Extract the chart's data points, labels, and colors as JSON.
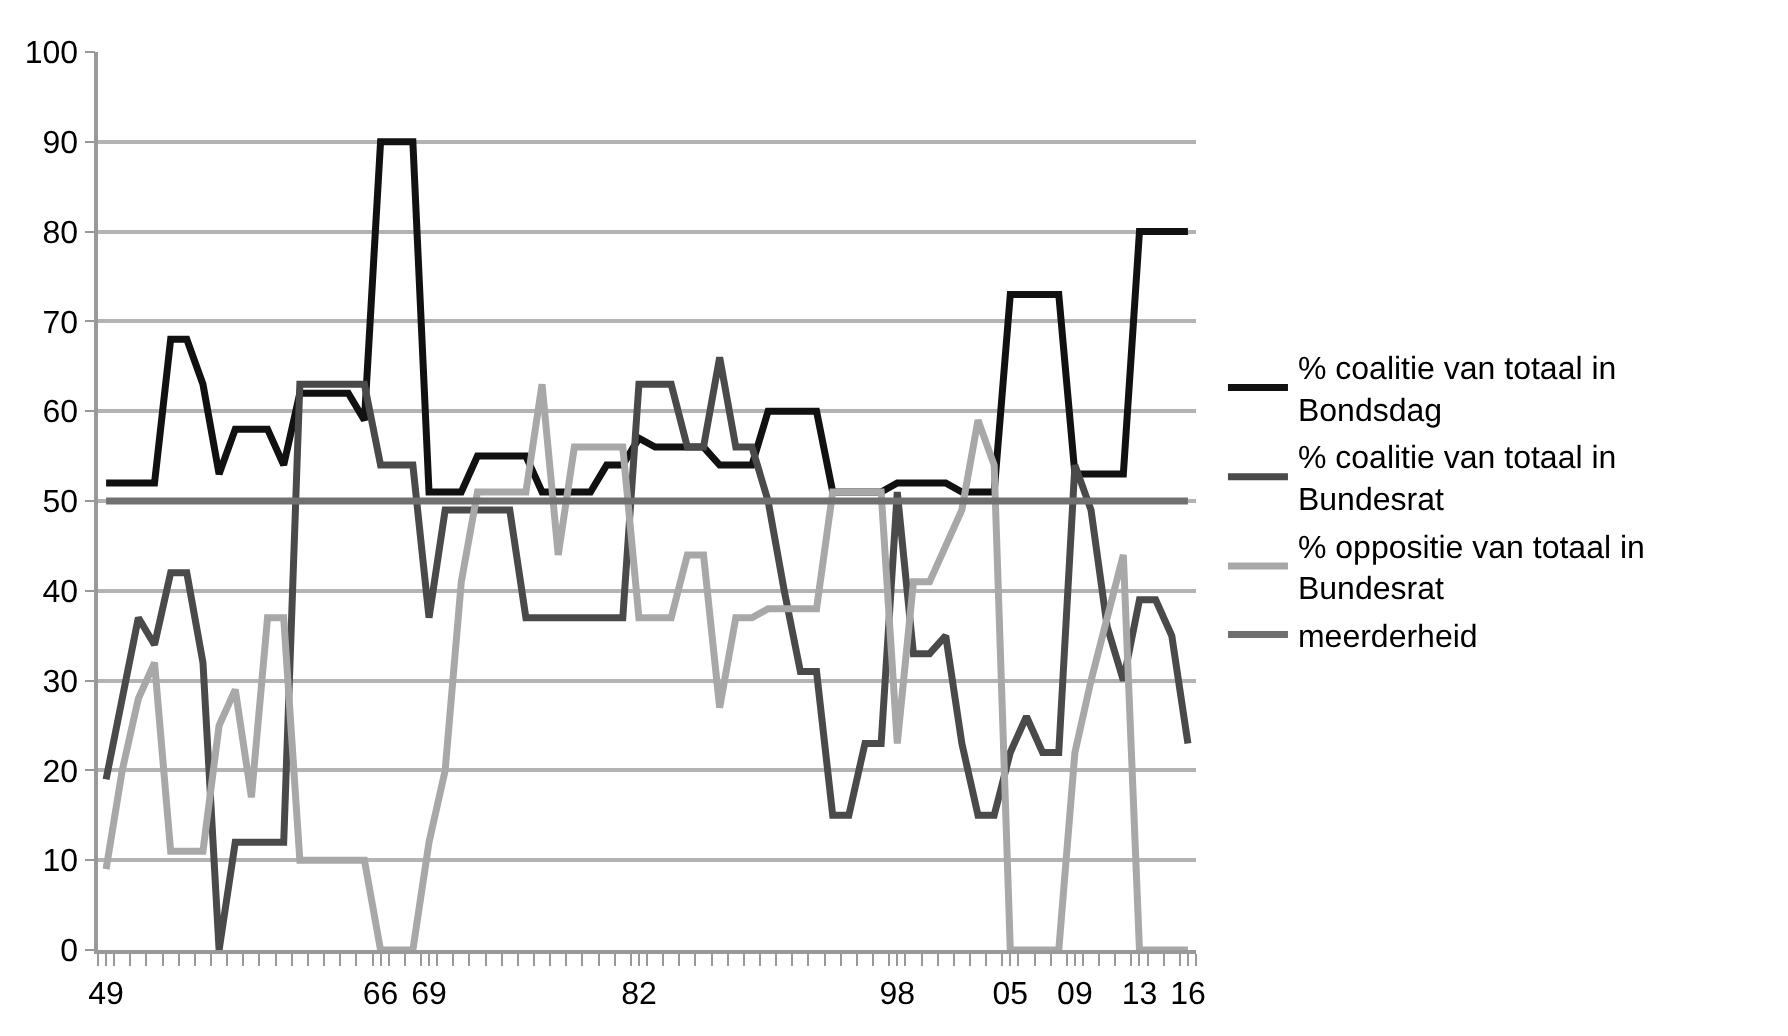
{
  "chart_data": {
    "type": "line",
    "categories": [
      "49",
      null,
      null,
      null,
      null,
      null,
      null,
      null,
      null,
      null,
      null,
      null,
      null,
      null,
      null,
      null,
      null,
      "66",
      null,
      null,
      "69",
      null,
      null,
      null,
      null,
      null,
      null,
      null,
      null,
      null,
      null,
      null,
      null,
      "82",
      null,
      null,
      null,
      null,
      null,
      null,
      null,
      null,
      null,
      null,
      null,
      null,
      null,
      null,
      null,
      "98",
      null,
      null,
      null,
      null,
      null,
      null,
      "05",
      null,
      null,
      null,
      "09",
      null,
      null,
      null,
      "13",
      null,
      null,
      "16"
    ],
    "series": [
      {
        "name": "% coalitie van totaal in Bondsdag",
        "color": "#111111",
        "values": [
          52,
          52,
          52,
          52,
          68,
          68,
          63,
          53,
          58,
          58,
          58,
          54,
          62,
          62,
          62,
          62,
          59,
          90,
          90,
          90,
          51,
          51,
          51,
          55,
          55,
          55,
          55,
          51,
          51,
          51,
          51,
          54,
          54,
          57,
          56,
          56,
          56,
          56,
          54,
          54,
          54,
          60,
          60,
          60,
          60,
          51,
          51,
          51,
          51,
          52,
          52,
          52,
          52,
          51,
          51,
          51,
          73,
          73,
          73,
          73,
          53,
          53,
          53,
          53,
          80,
          80,
          80,
          80
        ]
      },
      {
        "name": "% coalitie van totaal in Bundesrat",
        "color": "#4a4a4a",
        "values": [
          19,
          28,
          37,
          34,
          42,
          42,
          32,
          0,
          12,
          12,
          12,
          12,
          63,
          63,
          63,
          63,
          63,
          54,
          54,
          54,
          37,
          49,
          49,
          49,
          49,
          49,
          37,
          37,
          37,
          37,
          37,
          37,
          37,
          63,
          63,
          63,
          56,
          56,
          66,
          56,
          56,
          50,
          40,
          31,
          31,
          15,
          15,
          23,
          23,
          51,
          33,
          33,
          35,
          23,
          15,
          15,
          22,
          26,
          22,
          22,
          54,
          49,
          36,
          30,
          39,
          39,
          35,
          23
        ]
      },
      {
        "name": "% oppositie van totaal in Bundesrat",
        "color": "#a8a8a8",
        "values": [
          9,
          20,
          28,
          32,
          11,
          11,
          11,
          25,
          29,
          17,
          37,
          37,
          10,
          10,
          10,
          10,
          10,
          0,
          0,
          0,
          12,
          20,
          41,
          51,
          51,
          51,
          51,
          63,
          44,
          56,
          56,
          56,
          56,
          37,
          37,
          37,
          44,
          44,
          27,
          37,
          37,
          38,
          38,
          38,
          38,
          51,
          51,
          51,
          51,
          23,
          41,
          41,
          45,
          49,
          59,
          54,
          0,
          0,
          0,
          0,
          22,
          30,
          37,
          44,
          0,
          0,
          0,
          0
        ]
      },
      {
        "name": "meerderheid",
        "color": "#707070",
        "values": [
          50,
          50,
          50,
          50,
          50,
          50,
          50,
          50,
          50,
          50,
          50,
          50,
          50,
          50,
          50,
          50,
          50,
          50,
          50,
          50,
          50,
          50,
          50,
          50,
          50,
          50,
          50,
          50,
          50,
          50,
          50,
          50,
          50,
          50,
          50,
          50,
          50,
          50,
          50,
          50,
          50,
          50,
          50,
          50,
          50,
          50,
          50,
          50,
          50,
          50,
          50,
          50,
          50,
          50,
          50,
          50,
          50,
          50,
          50,
          50,
          50,
          50,
          50,
          50,
          50,
          50,
          50,
          50
        ]
      }
    ],
    "ylim": [
      0,
      100
    ],
    "yticks": [
      0,
      10,
      20,
      30,
      40,
      50,
      60,
      70,
      80,
      90,
      100
    ],
    "grid": "y",
    "legend": "right",
    "marker": "none",
    "line_style": "solid"
  }
}
